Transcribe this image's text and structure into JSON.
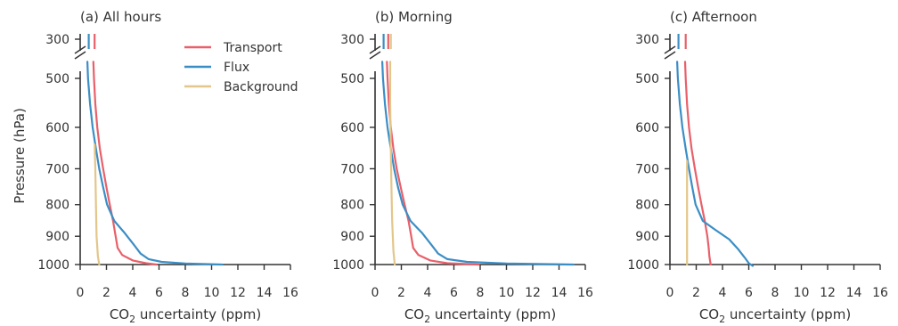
{
  "figure": {
    "ylabel": "Pressure (hPa)",
    "xlabel_prefix": "CO",
    "xlabel_sub": "2",
    "xlabel_suffix": " uncertainty (ppm)"
  },
  "colors": {
    "transport": "#e8606a",
    "flux": "#3b8ec5",
    "background": "#e3c68a",
    "axis": "#333333"
  },
  "chart_data": [
    {
      "type": "line",
      "title": "(a) All hours",
      "xlim": [
        0,
        16
      ],
      "xticks": [
        0,
        2,
        4,
        6,
        8,
        10,
        12,
        14,
        16
      ],
      "yticks_upper": [
        300
      ],
      "yticks_lower": [
        500,
        600,
        700,
        800,
        900,
        1000
      ],
      "axis_break": true,
      "legend": "top-right",
      "series": [
        {
          "name": "Transport",
          "color_key": "transport",
          "top": [
            [
              1.1,
              300
            ],
            [
              1.1,
              330
            ]
          ],
          "points": [
            [
              1.0,
              470
            ],
            [
              1.05,
              500
            ],
            [
              1.15,
              550
            ],
            [
              1.3,
              600
            ],
            [
              1.5,
              650
            ],
            [
              1.75,
              700
            ],
            [
              2.0,
              750
            ],
            [
              2.25,
              800
            ],
            [
              2.5,
              850
            ],
            [
              2.7,
              900
            ],
            [
              2.85,
              940
            ],
            [
              3.2,
              965
            ],
            [
              4.0,
              985
            ],
            [
              5.0,
              995
            ],
            [
              5.8,
              1000
            ]
          ]
        },
        {
          "name": "Flux",
          "color_key": "flux",
          "top": [
            [
              0.65,
              300
            ],
            [
              0.65,
              330
            ]
          ],
          "points": [
            [
              0.55,
              470
            ],
            [
              0.6,
              500
            ],
            [
              0.75,
              550
            ],
            [
              0.95,
              600
            ],
            [
              1.2,
              650
            ],
            [
              1.45,
              700
            ],
            [
              1.75,
              750
            ],
            [
              2.05,
              800
            ],
            [
              2.6,
              850
            ],
            [
              3.4,
              890
            ],
            [
              4.1,
              930
            ],
            [
              4.6,
              960
            ],
            [
              5.2,
              980
            ],
            [
              6.2,
              990
            ],
            [
              8.0,
              996
            ],
            [
              10.8,
              1000
            ]
          ]
        },
        {
          "name": "Background",
          "color_key": "background",
          "top": [],
          "points": [
            [
              1.1,
              640
            ],
            [
              1.15,
              700
            ],
            [
              1.2,
              800
            ],
            [
              1.25,
              900
            ],
            [
              1.35,
              970
            ],
            [
              1.45,
              1000
            ]
          ]
        }
      ]
    },
    {
      "type": "line",
      "title": "(b) Morning",
      "xlim": [
        0,
        16
      ],
      "xticks": [
        0,
        2,
        4,
        6,
        8,
        10,
        12,
        14,
        16
      ],
      "yticks_upper": [
        300
      ],
      "yticks_lower": [
        500,
        600,
        700,
        800,
        900,
        1000
      ],
      "axis_break": true,
      "series": [
        {
          "name": "Transport",
          "color_key": "transport",
          "top": [
            [
              1.0,
              300
            ],
            [
              1.0,
              330
            ]
          ],
          "points": [
            [
              0.9,
              470
            ],
            [
              0.95,
              500
            ],
            [
              1.05,
              550
            ],
            [
              1.2,
              600
            ],
            [
              1.4,
              650
            ],
            [
              1.65,
              700
            ],
            [
              1.95,
              750
            ],
            [
              2.25,
              800
            ],
            [
              2.55,
              850
            ],
            [
              2.75,
              900
            ],
            [
              2.9,
              940
            ],
            [
              3.3,
              965
            ],
            [
              4.2,
              985
            ],
            [
              5.5,
              995
            ],
            [
              7.9,
              1000
            ]
          ]
        },
        {
          "name": "Flux",
          "color_key": "flux",
          "top": [
            [
              0.65,
              300
            ],
            [
              0.65,
              330
            ]
          ],
          "points": [
            [
              0.55,
              470
            ],
            [
              0.6,
              500
            ],
            [
              0.75,
              550
            ],
            [
              0.95,
              600
            ],
            [
              1.2,
              650
            ],
            [
              1.45,
              700
            ],
            [
              1.75,
              750
            ],
            [
              2.1,
              800
            ],
            [
              2.7,
              850
            ],
            [
              3.6,
              890
            ],
            [
              4.3,
              930
            ],
            [
              4.8,
              960
            ],
            [
              5.5,
              980
            ],
            [
              7.0,
              990
            ],
            [
              10.0,
              996
            ],
            [
              15.1,
              1000
            ]
          ]
        },
        {
          "name": "Background",
          "color_key": "background",
          "top": [
            [
              1.2,
              300
            ],
            [
              1.2,
              330
            ]
          ],
          "points": [
            [
              1.15,
              470
            ],
            [
              1.15,
              550
            ],
            [
              1.2,
              650
            ],
            [
              1.25,
              750
            ],
            [
              1.3,
              850
            ],
            [
              1.4,
              950
            ],
            [
              1.5,
              1000
            ]
          ]
        }
      ]
    },
    {
      "type": "line",
      "title": "(c) Afternoon",
      "xlim": [
        0,
        16
      ],
      "xticks": [
        0,
        2,
        4,
        6,
        8,
        10,
        12,
        14,
        16
      ],
      "yticks_upper": [
        300
      ],
      "yticks_lower": [
        500,
        600,
        700,
        800,
        900,
        1000
      ],
      "axis_break": true,
      "series": [
        {
          "name": "Transport",
          "color_key": "transport",
          "top": [
            [
              1.2,
              300
            ],
            [
              1.2,
              330
            ]
          ],
          "points": [
            [
              1.15,
              470
            ],
            [
              1.2,
              500
            ],
            [
              1.3,
              550
            ],
            [
              1.45,
              600
            ],
            [
              1.65,
              650
            ],
            [
              1.9,
              700
            ],
            [
              2.15,
              750
            ],
            [
              2.4,
              800
            ],
            [
              2.65,
              850
            ],
            [
              2.85,
              900
            ],
            [
              2.95,
              940
            ],
            [
              3.0,
              970
            ],
            [
              3.1,
              1000
            ]
          ]
        },
        {
          "name": "Flux",
          "color_key": "flux",
          "top": [
            [
              0.65,
              300
            ],
            [
              0.65,
              330
            ]
          ],
          "points": [
            [
              0.55,
              470
            ],
            [
              0.6,
              500
            ],
            [
              0.75,
              550
            ],
            [
              0.95,
              600
            ],
            [
              1.2,
              650
            ],
            [
              1.45,
              700
            ],
            [
              1.7,
              750
            ],
            [
              1.95,
              800
            ],
            [
              2.5,
              850
            ],
            [
              3.5,
              880
            ],
            [
              4.5,
              910
            ],
            [
              5.2,
              945
            ],
            [
              5.7,
              975
            ],
            [
              6.0,
              995
            ],
            [
              6.3,
              1005
            ]
          ]
        },
        {
          "name": "Background",
          "color_key": "background",
          "top": [],
          "points": [
            [
              1.3,
              680
            ],
            [
              1.3,
              750
            ],
            [
              1.3,
              850
            ],
            [
              1.3,
              950
            ],
            [
              1.3,
              1000
            ]
          ]
        }
      ]
    }
  ]
}
